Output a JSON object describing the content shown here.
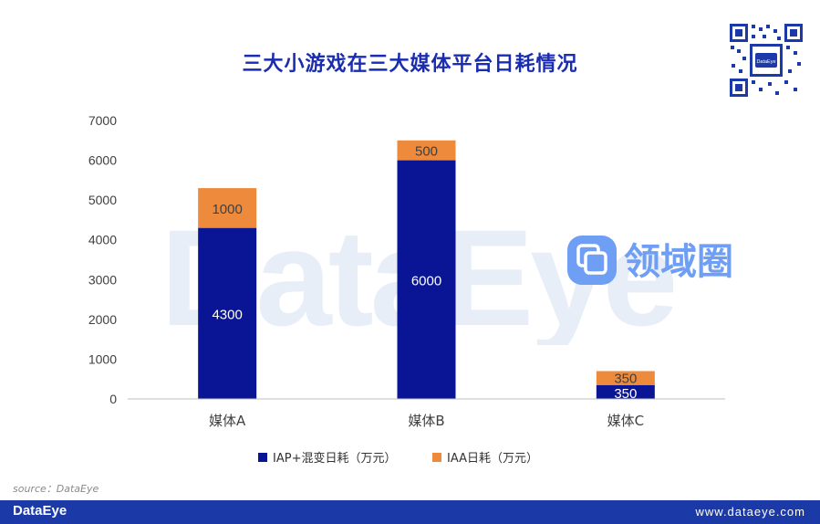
{
  "title": "三大小游戏在三大媒体平台日耗情况",
  "source": "source：DataEye",
  "watermark": "DataEye",
  "badge_text": "领域圈",
  "footer": {
    "brand": "DataEye",
    "url": "www.dataeye.com"
  },
  "qr_label": "DataEye",
  "chart_data": {
    "type": "bar",
    "stacked": true,
    "categories": [
      "媒体A",
      "媒体B",
      "媒体C"
    ],
    "series": [
      {
        "name": "IAP+混变日耗（万元）",
        "values": [
          4300,
          6000,
          350
        ],
        "color": "#0a1596"
      },
      {
        "name": "IAA日耗（万元）",
        "values": [
          1000,
          500,
          350
        ],
        "color": "#ee8a3c"
      }
    ],
    "ylim": [
      0,
      7000
    ],
    "yticks": [
      0,
      1000,
      2000,
      3000,
      4000,
      5000,
      6000,
      7000
    ],
    "grid": false,
    "legend_position": "bottom",
    "title": "三大小游戏在三大媒体平台日耗情况"
  }
}
